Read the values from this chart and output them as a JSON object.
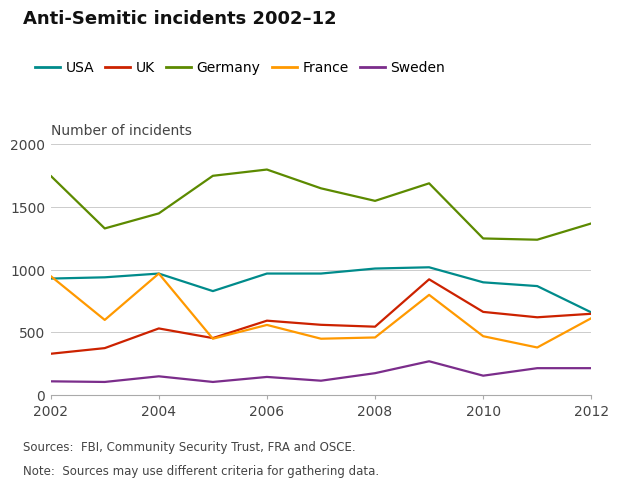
{
  "title": "Anti-Semitic incidents 2002–12",
  "ylabel": "Number of incidents",
  "years": [
    2002,
    2003,
    2004,
    2005,
    2006,
    2007,
    2008,
    2009,
    2010,
    2011,
    2012
  ],
  "series": {
    "USA": [
      930,
      940,
      970,
      830,
      970,
      970,
      1010,
      1020,
      900,
      870,
      660
    ],
    "UK": [
      330,
      375,
      532,
      455,
      594,
      561,
      546,
      924,
      664,
      621,
      649
    ],
    "Germany": [
      1750,
      1330,
      1450,
      1750,
      1800,
      1650,
      1550,
      1690,
      1250,
      1240,
      1370
    ],
    "France": [
      950,
      600,
      970,
      450,
      560,
      450,
      460,
      800,
      470,
      380,
      614
    ],
    "Sweden": [
      110,
      105,
      150,
      105,
      145,
      115,
      175,
      270,
      155,
      215,
      215
    ]
  },
  "colors": {
    "USA": "#008B8B",
    "UK": "#CC2200",
    "Germany": "#5C8A00",
    "France": "#FF9900",
    "Sweden": "#7B2D8B"
  },
  "ylim": [
    0,
    2000
  ],
  "yticks": [
    0,
    500,
    1000,
    1500,
    2000
  ],
  "xticks": [
    2002,
    2004,
    2006,
    2008,
    2010,
    2012
  ],
  "source_text": "Sources:  FBI, Community Security Trust, FRA and OSCE.",
  "note_text": "Note:  Sources may use different criteria for gathering data.",
  "background_color": "#ffffff",
  "grid_color": "#cccccc",
  "title_fontsize": 13,
  "label_fontsize": 10,
  "tick_fontsize": 10,
  "legend_order": [
    "USA",
    "UK",
    "Germany",
    "France",
    "Sweden"
  ]
}
